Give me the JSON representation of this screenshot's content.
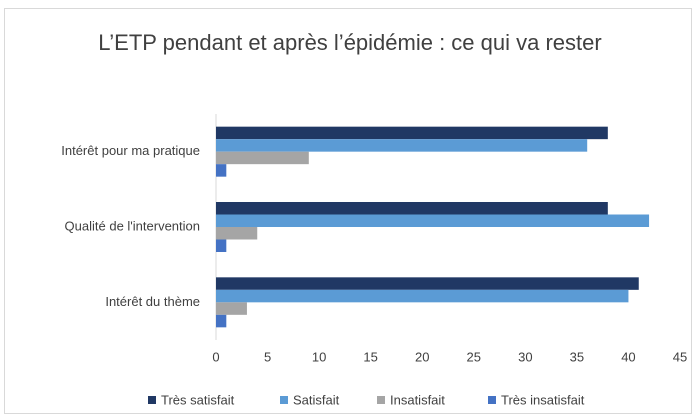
{
  "chart_data": {
    "type": "hbar",
    "title": "L’ETP pendant et après l’épidémie : ce qui va rester",
    "categories": [
      "Intérêt pour ma pratique",
      "Qualité de l'intervention",
      "Intérêt du thème"
    ],
    "series": [
      {
        "name": "Très satisfait",
        "color": "#203864",
        "values": [
          38,
          38,
          41
        ]
      },
      {
        "name": "Satisfait",
        "color": "#5b9bd5",
        "values": [
          36,
          42,
          40
        ]
      },
      {
        "name": "Insatisfait",
        "color": "#a5a5a5",
        "values": [
          9,
          4,
          3
        ]
      },
      {
        "name": "Très insatisfait",
        "color": "#4472c4",
        "values": [
          1,
          1,
          1
        ]
      }
    ],
    "xlim": [
      0,
      45
    ],
    "xticks": [
      0,
      5,
      10,
      15,
      20,
      25,
      30,
      35,
      40,
      45
    ],
    "grid": false,
    "legend": "bottom"
  }
}
